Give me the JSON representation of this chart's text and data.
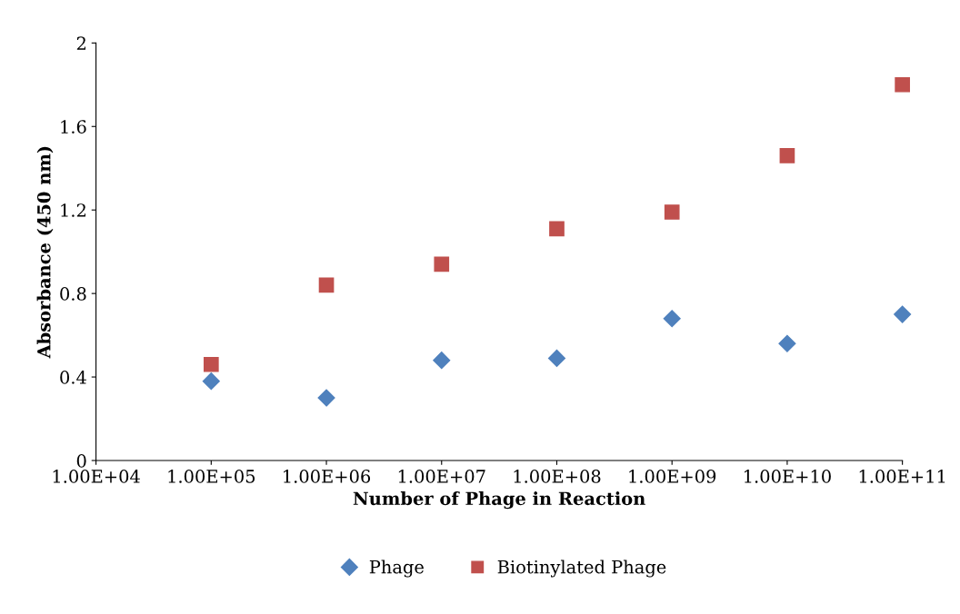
{
  "chart_data": {
    "type": "scatter",
    "xlabel": "Number of Phage in Reaction",
    "ylabel": "Absorbance (450 nm)",
    "log": "x",
    "xlim": [
      10000,
      100000000000
    ],
    "xticks": [
      {
        "value": 10000,
        "label": "1.00E+04"
      },
      {
        "value": 100000,
        "label": "1.00E+05"
      },
      {
        "value": 1000000,
        "label": "1.00E+06"
      },
      {
        "value": 10000000,
        "label": "1.00E+07"
      },
      {
        "value": 100000000,
        "label": "1.00E+08"
      },
      {
        "value": 1000000000,
        "label": "1.00E+09"
      },
      {
        "value": 10000000000,
        "label": "1.00E+10"
      },
      {
        "value": 100000000000,
        "label": "1.00E+11"
      }
    ],
    "ylim": [
      0,
      2
    ],
    "yticks": [
      0,
      0.4,
      0.8,
      1.2,
      1.6,
      2
    ],
    "grid": false,
    "legend": "bottom",
    "x": [
      100000,
      1000000,
      10000000,
      100000000,
      1000000000,
      10000000000,
      100000000000
    ],
    "series": [
      {
        "name": "Phage",
        "color": "#4f81bd",
        "marker": "diamond",
        "values": [
          0.38,
          0.3,
          0.48,
          0.49,
          0.68,
          0.56,
          0.7
        ]
      },
      {
        "name": "Biotinylated Phage",
        "color": "#c0504d",
        "marker": "square",
        "values": [
          0.46,
          0.84,
          0.94,
          1.11,
          1.19,
          1.46,
          1.8
        ]
      }
    ]
  }
}
